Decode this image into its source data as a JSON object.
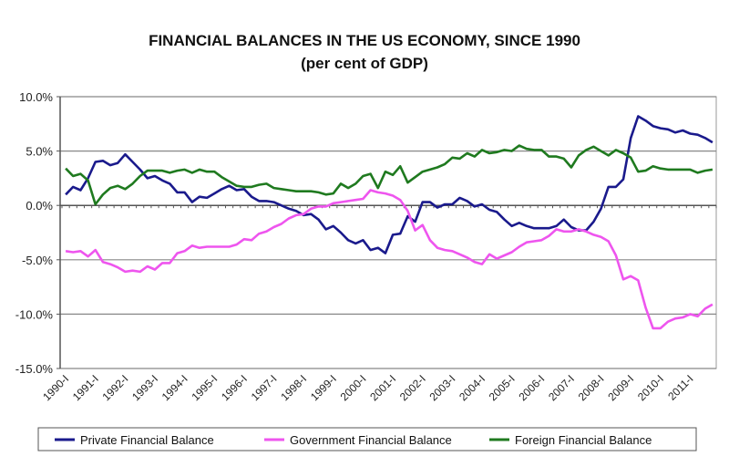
{
  "chart_data": {
    "type": "line",
    "title": "FINANCIAL BALANCES IN THE US ECONOMY, SINCE 1990",
    "subtitle": "(per cent of GDP)",
    "xlabel": "",
    "ylabel": "",
    "ylim": [
      -15,
      10
    ],
    "yticks": [
      "10.0%",
      "5.0%",
      "0.0%",
      "-5.0%",
      "-10.0%",
      "-15.0%"
    ],
    "ytick_values": [
      10,
      5,
      0,
      -5,
      -10,
      -15
    ],
    "xtick_labels": [
      "1990-I",
      "1991-I",
      "1992-I",
      "1993-I",
      "1994-I",
      "1995-I",
      "1996-I",
      "1997-I",
      "1998-I",
      "1999-I",
      "2000-I",
      "2001-I",
      "2002-I",
      "2003-I",
      "2004-I",
      "2005-I",
      "2006-I",
      "2007-I",
      "2008-I",
      "2009-I",
      "2010-I",
      "2011-I"
    ],
    "x_note": "quarterly from 1990-I to 2011-IV",
    "grid": true,
    "legend_position": "bottom",
    "series": [
      {
        "name": "Private Financial Balance",
        "color": "#1a1a8c",
        "values": [
          1.0,
          1.7,
          1.4,
          2.5,
          4.0,
          4.1,
          3.7,
          3.9,
          4.7,
          4.0,
          3.3,
          2.5,
          2.7,
          2.3,
          2.0,
          1.2,
          1.2,
          0.3,
          0.8,
          0.7,
          1.1,
          1.5,
          1.8,
          1.4,
          1.5,
          0.8,
          0.4,
          0.4,
          0.3,
          0.0,
          -0.3,
          -0.5,
          -0.9,
          -0.8,
          -1.3,
          -2.2,
          -1.9,
          -2.5,
          -3.2,
          -3.5,
          -3.2,
          -4.1,
          -3.9,
          -4.4,
          -2.7,
          -2.6,
          -1.0,
          -1.5,
          0.3,
          0.3,
          -0.2,
          0.1,
          0.1,
          0.7,
          0.4,
          -0.1,
          0.1,
          -0.4,
          -0.6,
          -1.3,
          -1.9,
          -1.6,
          -1.9,
          -2.1,
          -2.1,
          -2.1,
          -1.9,
          -1.3,
          -2.0,
          -2.3,
          -2.3,
          -1.5,
          -0.3,
          1.7,
          1.7,
          2.4,
          6.2,
          8.2,
          7.8,
          7.3,
          7.1,
          7.0,
          6.7,
          6.9,
          6.6,
          6.5,
          6.2,
          5.8
        ]
      },
      {
        "name": "Government Financial Balance",
        "color": "#ee55ee",
        "values": [
          -4.2,
          -4.3,
          -4.2,
          -4.7,
          -4.1,
          -5.2,
          -5.4,
          -5.7,
          -6.1,
          -6.0,
          -6.1,
          -5.6,
          -5.9,
          -5.3,
          -5.3,
          -4.4,
          -4.2,
          -3.7,
          -3.9,
          -3.8,
          -3.8,
          -3.8,
          -3.8,
          -3.6,
          -3.1,
          -3.2,
          -2.6,
          -2.4,
          -2.0,
          -1.7,
          -1.2,
          -0.9,
          -0.8,
          -0.3,
          -0.1,
          -0.1,
          0.2,
          0.3,
          0.4,
          0.5,
          0.6,
          1.4,
          1.2,
          1.1,
          0.9,
          0.5,
          -0.5,
          -2.3,
          -1.8,
          -3.2,
          -3.9,
          -4.1,
          -4.2,
          -4.5,
          -4.8,
          -5.2,
          -5.4,
          -4.5,
          -4.9,
          -4.6,
          -4.3,
          -3.8,
          -3.4,
          -3.3,
          -3.2,
          -2.8,
          -2.2,
          -2.4,
          -2.4,
          -2.2,
          -2.4,
          -2.7,
          -2.9,
          -3.3,
          -4.6,
          -6.8,
          -6.5,
          -6.9,
          -9.4,
          -11.3,
          -11.3,
          -10.7,
          -10.4,
          -10.3,
          -10.0,
          -10.2,
          -9.5,
          -9.1
        ]
      },
      {
        "name": "Foreign Financial Balance",
        "color": "#1f7a1f",
        "values": [
          3.4,
          2.7,
          2.9,
          2.3,
          0.1,
          1.0,
          1.6,
          1.8,
          1.5,
          2.0,
          2.7,
          3.2,
          3.2,
          3.2,
          3.0,
          3.2,
          3.3,
          3.0,
          3.3,
          3.1,
          3.1,
          2.6,
          2.2,
          1.8,
          1.7,
          1.7,
          1.9,
          2.0,
          1.6,
          1.5,
          1.4,
          1.3,
          1.3,
          1.3,
          1.2,
          1.0,
          1.1,
          2.0,
          1.6,
          2.0,
          2.7,
          2.9,
          1.6,
          3.1,
          2.8,
          3.6,
          2.1,
          2.6,
          3.1,
          3.3,
          3.5,
          3.8,
          4.4,
          4.3,
          4.8,
          4.5,
          5.1,
          4.8,
          4.9,
          5.1,
          5.0,
          5.5,
          5.2,
          5.1,
          5.1,
          4.5,
          4.5,
          4.3,
          3.5,
          4.6,
          5.1,
          5.4,
          5.0,
          4.6,
          5.1,
          4.8,
          4.4,
          3.1,
          3.2,
          3.6,
          3.4,
          3.3,
          3.3,
          3.3,
          3.3,
          3.0,
          3.2,
          3.3
        ]
      }
    ]
  }
}
